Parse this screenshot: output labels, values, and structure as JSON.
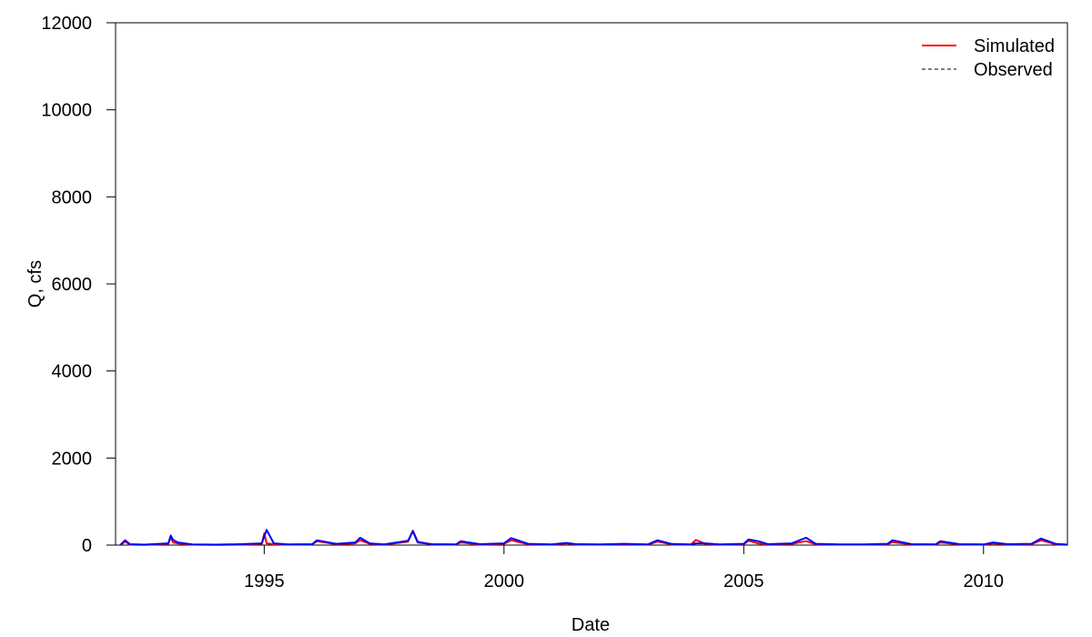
{
  "chart_data": {
    "type": "line",
    "title": "",
    "xlabel": "Date",
    "ylabel": "Q, cfs",
    "xlim": [
      1991.9,
      2011.75
    ],
    "ylim": [
      0,
      12000
    ],
    "x_ticks": [
      1995,
      2000,
      2005,
      2010
    ],
    "x_tick_labels": [
      "1995",
      "2000",
      "2005",
      "2010"
    ],
    "y_ticks": [
      0,
      2000,
      4000,
      6000,
      8000,
      10000,
      12000
    ],
    "y_tick_labels": [
      "0",
      "2000",
      "4000",
      "6000",
      "8000",
      "10000",
      "12000"
    ],
    "grid": false,
    "legend_position": "top-right",
    "legend": [
      "Simulated",
      "Observed"
    ],
    "series": [
      {
        "name": "Simulated",
        "color": "#ff0000",
        "x": [
          1992.0,
          1992.1,
          1992.2,
          1992.5,
          1993.0,
          1993.05,
          1993.1,
          1993.2,
          1993.5,
          1994.0,
          1994.5,
          1994.95,
          1995.0,
          1995.05,
          1995.2,
          1995.5,
          1996.0,
          1996.1,
          1996.5,
          1996.9,
          1997.0,
          1997.2,
          1997.5,
          1998.0,
          1998.1,
          1998.2,
          1998.5,
          1999.0,
          1999.1,
          1999.5,
          2000.0,
          2000.15,
          2000.5,
          2001.0,
          2001.3,
          2001.5,
          2002.0,
          2002.5,
          2003.0,
          2003.2,
          2003.5,
          2003.9,
          2004.0,
          2004.2,
          2004.5,
          2005.0,
          2005.1,
          2005.3,
          2005.5,
          2006.0,
          2006.3,
          2006.5,
          2007.0,
          2007.5,
          2008.0,
          2008.1,
          2008.5,
          2009.0,
          2009.1,
          2009.5,
          2010.0,
          2010.2,
          2010.5,
          2011.0,
          2011.2,
          2011.5,
          2011.75
        ],
        "y": [
          5,
          80,
          10,
          5,
          30,
          180,
          60,
          40,
          10,
          5,
          10,
          30,
          270,
          40,
          20,
          10,
          15,
          90,
          20,
          40,
          110,
          30,
          10,
          80,
          330,
          80,
          15,
          10,
          60,
          10,
          30,
          110,
          20,
          10,
          40,
          15,
          10,
          20,
          10,
          80,
          15,
          10,
          120,
          30,
          10,
          20,
          100,
          40,
          15,
          30,
          90,
          20,
          10,
          10,
          20,
          70,
          15,
          10,
          60,
          15,
          10,
          40,
          15,
          20,
          110,
          20,
          5
        ]
      },
      {
        "name": "Observed",
        "color": "#0000ff",
        "x": [
          1992.0,
          1992.1,
          1992.2,
          1992.5,
          1993.0,
          1993.05,
          1993.1,
          1993.2,
          1993.5,
          1994.0,
          1994.5,
          1994.95,
          1995.0,
          1995.05,
          1995.2,
          1995.5,
          1996.0,
          1996.1,
          1996.5,
          1996.9,
          1997.0,
          1997.2,
          1997.5,
          1998.0,
          1998.1,
          1998.2,
          1998.5,
          1999.0,
          1999.1,
          1999.5,
          2000.0,
          2000.15,
          2000.5,
          2001.0,
          2001.3,
          2001.5,
          2002.0,
          2002.5,
          2003.0,
          2003.2,
          2003.5,
          2003.9,
          2004.0,
          2004.2,
          2004.5,
          2005.0,
          2005.1,
          2005.3,
          2005.5,
          2006.0,
          2006.3,
          2006.5,
          2007.0,
          2007.5,
          2008.0,
          2008.1,
          2008.5,
          2009.0,
          2009.1,
          2009.5,
          2010.0,
          2010.2,
          2010.5,
          2011.0,
          2011.2,
          2011.5,
          2011.75
        ],
        "y": [
          5,
          110,
          20,
          10,
          40,
          220,
          120,
          60,
          15,
          10,
          20,
          40,
          200,
          350,
          40,
          15,
          20,
          110,
          30,
          60,
          170,
          40,
          15,
          100,
          320,
          60,
          20,
          15,
          90,
          20,
          40,
          160,
          30,
          15,
          50,
          20,
          15,
          30,
          15,
          110,
          25,
          15,
          40,
          40,
          15,
          30,
          130,
          90,
          20,
          40,
          170,
          30,
          15,
          15,
          30,
          110,
          20,
          15,
          90,
          20,
          15,
          60,
          20,
          30,
          150,
          30,
          10
        ]
      }
    ]
  }
}
